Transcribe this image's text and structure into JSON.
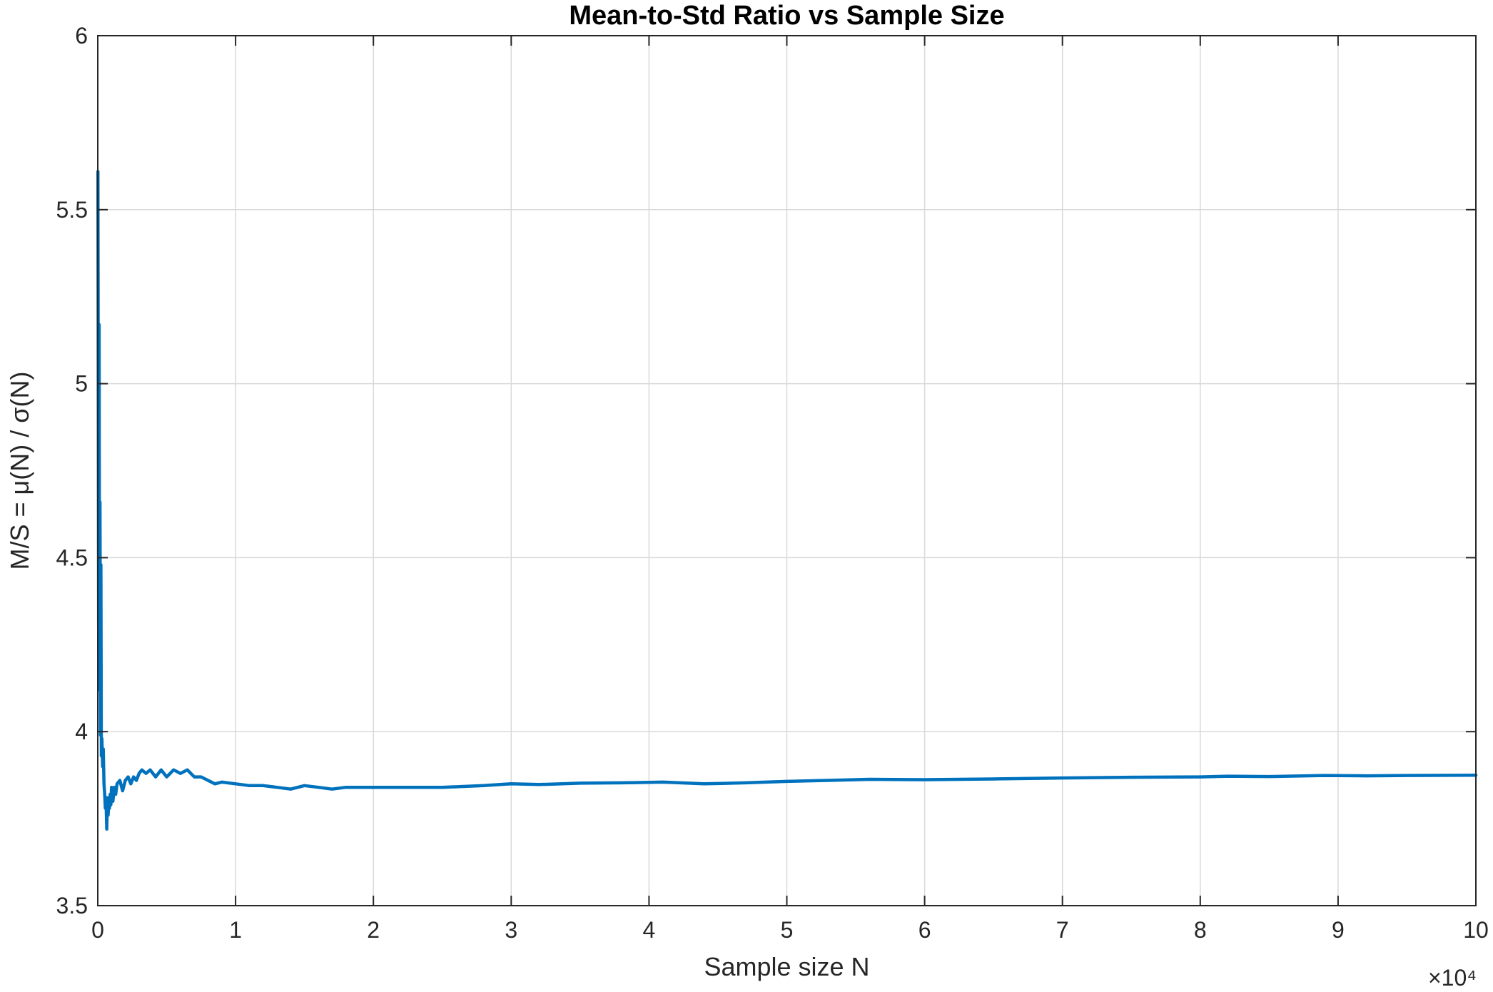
{
  "chart_data": {
    "type": "line",
    "title": "Mean-to-Std Ratio vs Sample Size",
    "xlabel": "Sample size N",
    "ylabel": "M/S =  μ(N)  /  σ(N)",
    "xlim": [
      0,
      100000
    ],
    "ylim": [
      3.5,
      6
    ],
    "x_exponent_label": "×10⁴",
    "xticks": [
      0,
      10000,
      20000,
      30000,
      40000,
      50000,
      60000,
      70000,
      80000,
      90000,
      100000
    ],
    "xtick_labels": [
      "0",
      "1",
      "2",
      "3",
      "4",
      "5",
      "6",
      "7",
      "8",
      "9",
      "10"
    ],
    "yticks": [
      3.5,
      4,
      4.5,
      5,
      5.5,
      6
    ],
    "ytick_labels": [
      "3.5",
      "4",
      "4.5",
      "5",
      "5.5",
      "6"
    ],
    "grid": true,
    "colors": {
      "line": "#0072BD",
      "grid": "#d9d9d9",
      "axis": "#262626"
    },
    "series": [
      {
        "x": [
          10,
          60,
          100,
          130,
          160,
          200,
          230,
          260,
          300,
          350,
          400,
          450,
          500,
          550,
          600,
          650,
          700,
          750,
          800,
          850,
          900,
          950,
          1000,
          1100,
          1200,
          1300,
          1400,
          1600,
          1800,
          2000,
          2200,
          2400,
          2600,
          2800,
          3000,
          3200,
          3500,
          3800,
          4200,
          4600,
          5000,
          5500,
          6000,
          6500,
          7000,
          7500,
          8000,
          8500,
          9000,
          10000,
          11000,
          12000,
          13000,
          14000,
          15000,
          16000,
          17000,
          18000,
          19000,
          20000,
          22000,
          25000,
          28000,
          30000,
          32000,
          35000,
          38000,
          41000,
          44000,
          47000,
          50000,
          53000,
          56000,
          60000,
          65000,
          70000,
          75000,
          80000,
          82000,
          85000,
          89000,
          92000,
          95000,
          100000
        ],
        "y": [
          5.61,
          4.3,
          5.17,
          4.12,
          4.66,
          3.99,
          4.48,
          3.93,
          3.98,
          3.9,
          3.95,
          3.85,
          3.82,
          3.78,
          3.8,
          3.72,
          3.81,
          3.76,
          3.8,
          3.78,
          3.82,
          3.79,
          3.84,
          3.8,
          3.84,
          3.82,
          3.85,
          3.86,
          3.83,
          3.86,
          3.87,
          3.85,
          3.87,
          3.86,
          3.88,
          3.89,
          3.88,
          3.89,
          3.87,
          3.89,
          3.87,
          3.89,
          3.88,
          3.89,
          3.87,
          3.87,
          3.86,
          3.85,
          3.855,
          3.85,
          3.845,
          3.845,
          3.84,
          3.835,
          3.845,
          3.84,
          3.835,
          3.84,
          3.84,
          3.84,
          3.84,
          3.84,
          3.845,
          3.85,
          3.848,
          3.852,
          3.853,
          3.855,
          3.85,
          3.853,
          3.857,
          3.86,
          3.863,
          3.862,
          3.864,
          3.867,
          3.869,
          3.87,
          3.872,
          3.871,
          3.874,
          3.873,
          3.874,
          3.875
        ]
      }
    ]
  }
}
